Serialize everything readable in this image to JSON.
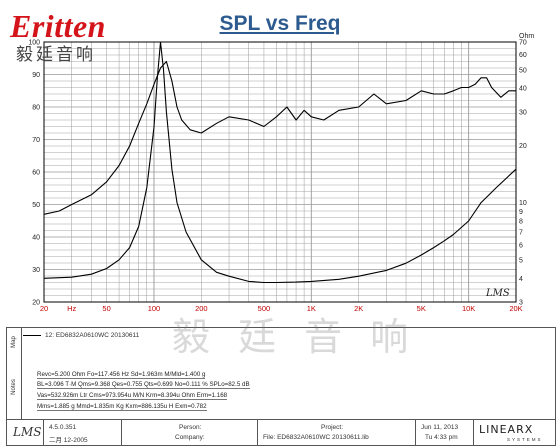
{
  "brand": {
    "logo_text": "Eritten",
    "logo_chinese": "毅廷音响",
    "colors": {
      "logo_red": "#d4141a",
      "title_blue": "#2d5a8f"
    }
  },
  "chart_data": {
    "type": "line",
    "title": "SPL vs Freq",
    "x_scale": "log",
    "xlim": [
      20,
      20000
    ],
    "x_tick_labels": [
      "20",
      "Hz",
      "50",
      "100",
      "200",
      "500",
      "1K",
      "2K",
      "5K",
      "10K",
      "20K"
    ],
    "x_tick_values": [
      20,
      30,
      50,
      100,
      200,
      500,
      1000,
      2000,
      5000,
      10000,
      20000
    ],
    "left_axis": {
      "unit": "dB",
      "ylim": [
        20,
        100
      ],
      "tick_labels": [
        "20",
        "30",
        "40",
        "50",
        "60",
        "70",
        "80",
        "90",
        "100"
      ]
    },
    "right_axis": {
      "unit": "Ohm",
      "scale": "log",
      "ylim": [
        3,
        70
      ],
      "tick_labels": [
        "Ohm",
        "70",
        "60",
        "50",
        "40",
        "30",
        "20",
        "10",
        "9",
        "8",
        "7",
        "6",
        "5",
        "4",
        "3"
      ],
      "tick_values": [
        70,
        60,
        50,
        40,
        30,
        20,
        10,
        9,
        8,
        7,
        6,
        5,
        4,
        3
      ]
    },
    "grid": true,
    "watermark": "LMS",
    "series": [
      {
        "axis": "left",
        "color": "#000000",
        "x": [
          20,
          25,
          30,
          40,
          50,
          60,
          70,
          80,
          90,
          100,
          110,
          120,
          130,
          140,
          150,
          170,
          200,
          250,
          300,
          400,
          500,
          600,
          700,
          800,
          900,
          1000,
          1200,
          1500,
          2000,
          2500,
          3000,
          4000,
          5000,
          6000,
          7000,
          8000,
          9000,
          10000,
          11000,
          12000,
          13000,
          14000,
          16000,
          18000,
          20000
        ],
        "values": [
          47,
          48,
          50,
          53,
          57,
          62,
          68,
          75,
          81,
          87,
          92,
          94,
          88,
          80,
          76,
          73,
          72,
          75,
          77,
          76,
          74,
          77,
          80,
          76,
          79,
          77,
          76,
          79,
          80,
          84,
          81,
          82,
          85,
          84,
          84,
          85,
          86,
          86,
          87,
          89,
          89,
          86,
          83,
          85,
          85
        ]
      },
      {
        "axis": "right",
        "color": "#000000",
        "x": [
          20,
          30,
          40,
          50,
          60,
          70,
          80,
          90,
          100,
          105,
          110,
          115,
          120,
          130,
          140,
          160,
          200,
          250,
          300,
          400,
          500,
          600,
          800,
          1000,
          1500,
          2000,
          3000,
          4000,
          5000,
          6000,
          7000,
          8000,
          10000,
          12000,
          15000,
          20000
        ],
        "values": [
          4.0,
          4.05,
          4.2,
          4.5,
          5.0,
          5.8,
          7.5,
          12,
          25,
          45,
          70,
          50,
          30,
          15,
          10,
          7,
          5,
          4.3,
          4.1,
          3.85,
          3.8,
          3.8,
          3.82,
          3.85,
          3.95,
          4.1,
          4.4,
          4.8,
          5.3,
          5.8,
          6.3,
          6.8,
          8.0,
          10,
          12,
          15
        ]
      }
    ]
  },
  "map": {
    "band_label": "Map",
    "entry_label": "12: ED6832A0610WC  20130611"
  },
  "watermark_text": "毅  廷  音  响",
  "notes": {
    "band_label": "Notes",
    "lines": [
      "Revc=5.200 Ohm  Fo=117.456 Hz  Sd=1.963m M/Mld=1.400 g",
      "BL=3.096 T·M  Qms=9.368  Qes=0.755  Qts=0.699  No=0.111 %  SPLo=82.5 dB",
      "Vas=532.926m Ltr  Cms=973.954u M/N  Krm=8.394u Ohm  Erm=1.168",
      "Mms=1.885 g  Mmd=1.835m Kg  Kxm=886.135u H  Exm=0.782"
    ]
  },
  "footer": {
    "lms_logo": "LMS",
    "version": "4.5.0.351",
    "version_date": "二月 12-2005",
    "person_label": "Person:",
    "company_label": "Company:",
    "project_label": "Project:",
    "file_text": "File: ED6832A0610WC  20130611.lib",
    "date": "Jun 11, 2013",
    "time": "Tu 4:33 pm",
    "brand": "LINEARX",
    "brand_sub": "SYSTEMS"
  }
}
